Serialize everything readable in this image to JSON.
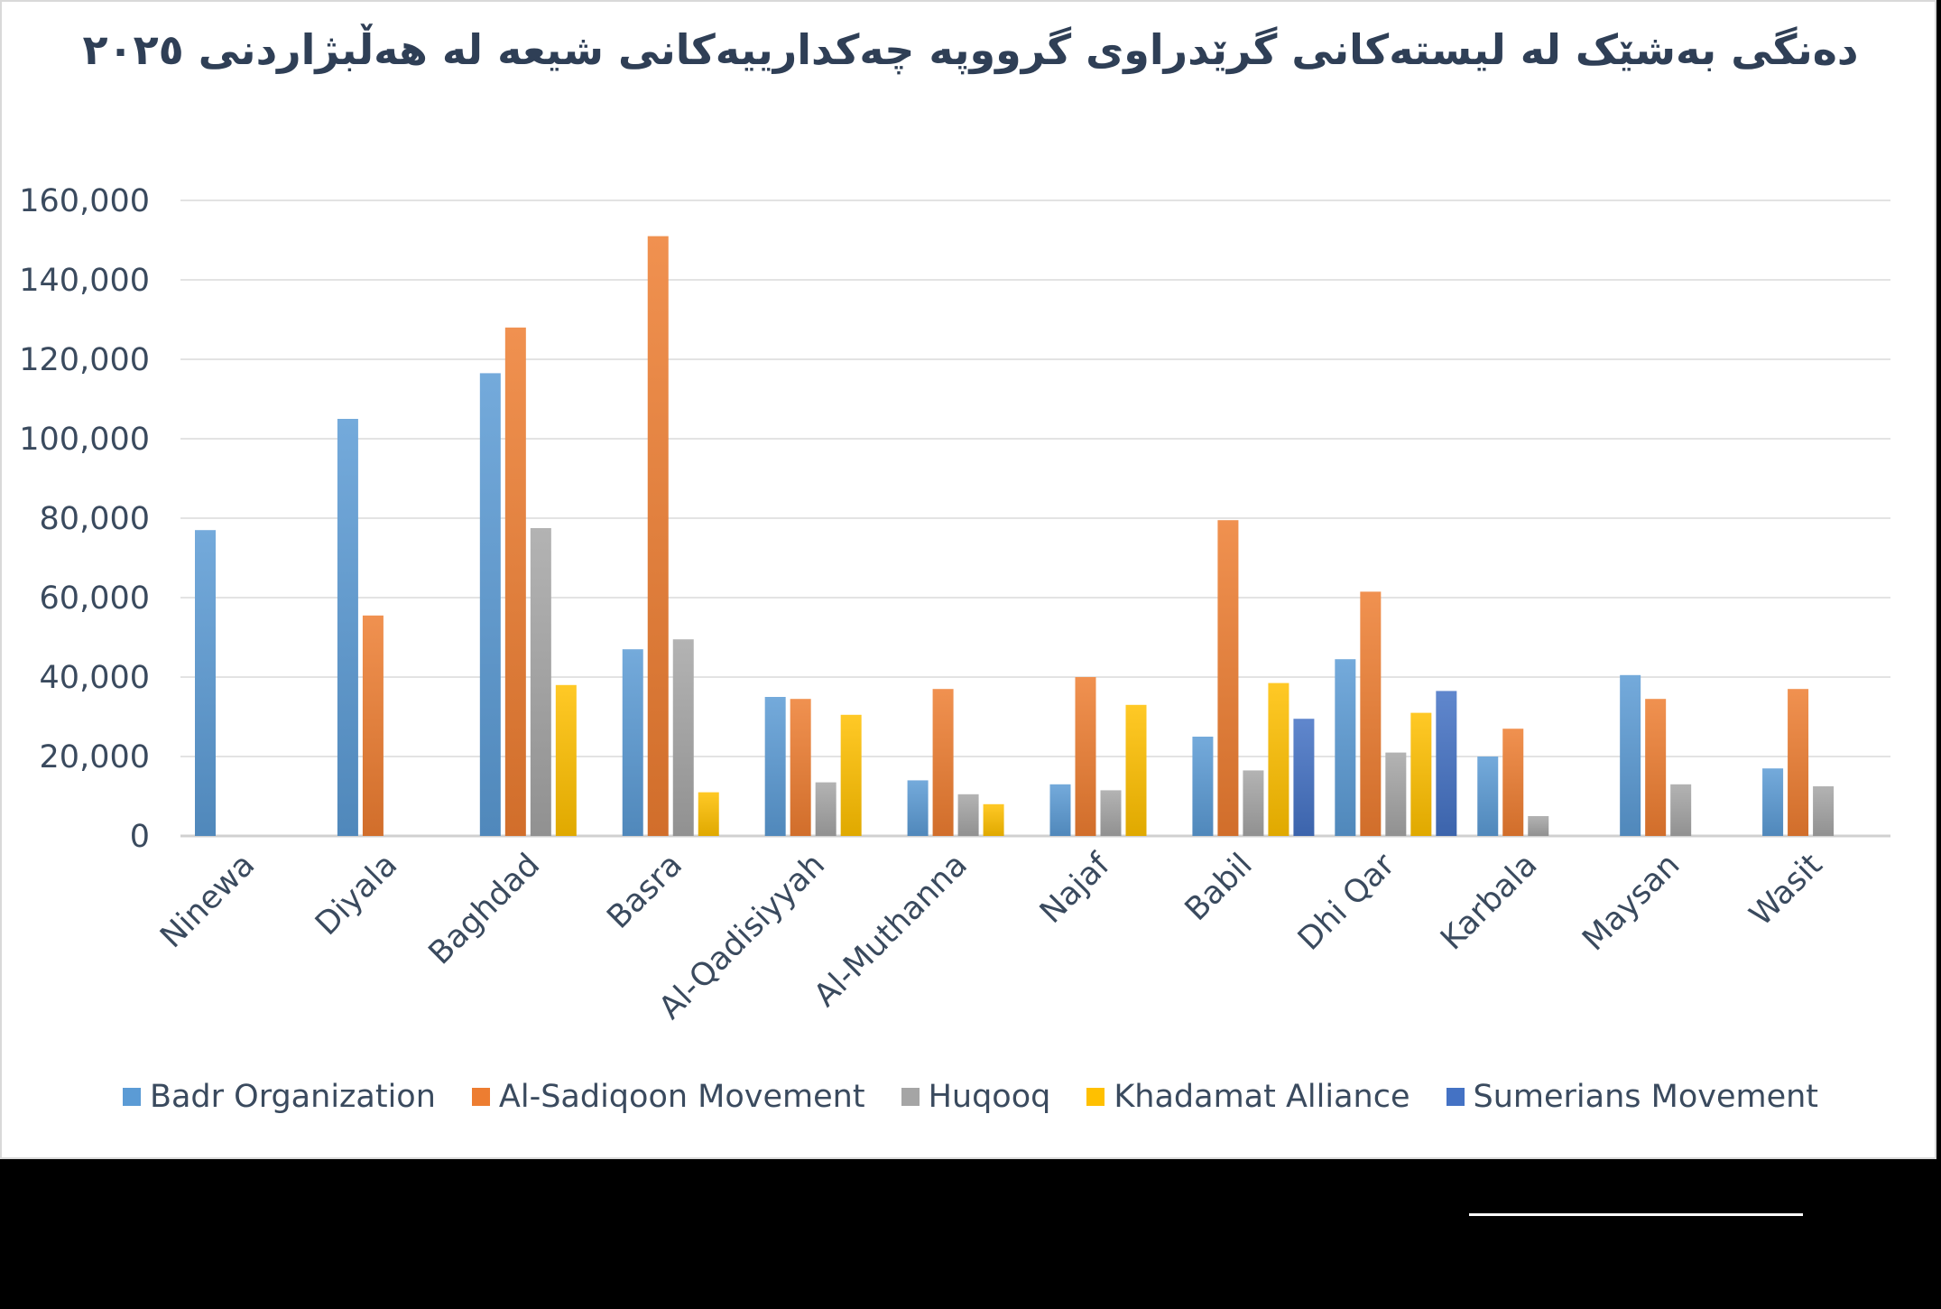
{
  "chart_data": {
    "type": "bar",
    "title": "دەنگی بەشێک لە لیستەکانی گرێدراوی گرووپە چەکدارییەکانی شیعە لە هەڵبژاردنی ٢٠٢٥",
    "categories": [
      "Ninewa",
      "Diyala",
      "Baghdad",
      "Basra",
      "Al-Qadisiyyah",
      "Al-Muthanna",
      "Najaf",
      "Babil",
      "Dhi Qar",
      "Karbala",
      "Maysan",
      "Wasit"
    ],
    "series": [
      {
        "name": "Badr Organization",
        "color": "#5b9bd5",
        "values": [
          77000,
          105000,
          116500,
          47000,
          35000,
          14000,
          13000,
          25000,
          44500,
          20000,
          40500,
          17000
        ]
      },
      {
        "name": "Al-Sadiqoon Movement",
        "color": "#ed7d31",
        "values": [
          null,
          55500,
          128000,
          151000,
          34500,
          37000,
          40000,
          79500,
          61500,
          27000,
          34500,
          37000
        ]
      },
      {
        "name": "Huqooq",
        "color": "#a5a5a5",
        "values": [
          null,
          null,
          77500,
          49500,
          13500,
          10500,
          11500,
          16500,
          21000,
          5000,
          13000,
          12500
        ]
      },
      {
        "name": "Khadamat Alliance",
        "color": "#ffc000",
        "values": [
          null,
          null,
          38000,
          11000,
          30500,
          8000,
          33000,
          38500,
          31000,
          null,
          null,
          null
        ]
      },
      {
        "name": "Sumerians Movement",
        "color": "#4472c4",
        "values": [
          null,
          null,
          null,
          null,
          null,
          null,
          null,
          29500,
          36500,
          null,
          null,
          null
        ]
      }
    ],
    "ylim": [
      0,
      160000
    ],
    "ytick_step": 20000,
    "ytick_labels": [
      "0",
      "20,000",
      "40,000",
      "60,000",
      "80,000",
      "100,000",
      "120,000",
      "140,000",
      "160,000"
    ],
    "grid": true,
    "legend_position": "bottom"
  }
}
